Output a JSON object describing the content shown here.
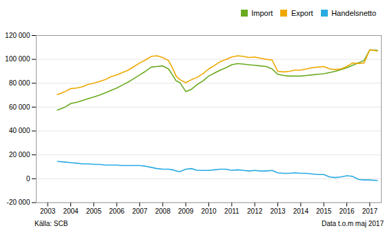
{
  "chart_data": {
    "type": "line",
    "x": [
      2003.42,
      2003.75,
      2004.0,
      2004.25,
      2004.5,
      2004.75,
      2005.0,
      2005.25,
      2005.5,
      2005.75,
      2006.0,
      2006.25,
      2006.5,
      2006.75,
      2007.0,
      2007.25,
      2007.5,
      2007.75,
      2008.0,
      2008.25,
      2008.42,
      2008.58,
      2008.75,
      2009.0,
      2009.25,
      2009.5,
      2009.75,
      2010.0,
      2010.25,
      2010.5,
      2010.75,
      2011.0,
      2011.25,
      2011.5,
      2011.75,
      2012.0,
      2012.25,
      2012.5,
      2012.75,
      2013.0,
      2013.25,
      2013.5,
      2013.75,
      2014.0,
      2014.25,
      2014.5,
      2014.75,
      2015.0,
      2015.25,
      2015.5,
      2015.75,
      2016.0,
      2016.25,
      2016.5,
      2016.75,
      2017.0,
      2017.33
    ],
    "series": [
      {
        "name": "Import",
        "color": "#6aaa1e",
        "values": [
          57500,
          60000,
          63000,
          64000,
          65500,
          67000,
          68500,
          70000,
          72000,
          74000,
          76000,
          78500,
          81000,
          84000,
          87000,
          90000,
          93500,
          94000,
          94500,
          92000,
          87000,
          82000,
          80500,
          73000,
          75000,
          79000,
          82000,
          86000,
          88500,
          91000,
          93000,
          95500,
          96500,
          96000,
          95500,
          95000,
          94500,
          94000,
          92000,
          87500,
          86500,
          86000,
          86000,
          86000,
          86500,
          87000,
          87500,
          88000,
          89000,
          90000,
          91500,
          93000,
          95000,
          97000,
          99000,
          108000,
          107500
        ]
      },
      {
        "name": "Export",
        "color": "#f0a800",
        "values": [
          70500,
          73000,
          75500,
          76000,
          77000,
          79000,
          80000,
          81500,
          83000,
          85500,
          87000,
          89000,
          91000,
          94000,
          97000,
          99500,
          102500,
          103000,
          101500,
          99000,
          93000,
          86000,
          83000,
          80500,
          83000,
          85000,
          88000,
          92000,
          95000,
          98000,
          100000,
          102000,
          103000,
          102500,
          101500,
          102000,
          101000,
          100000,
          99500,
          90000,
          89500,
          90000,
          91000,
          91000,
          92000,
          93000,
          93500,
          94000,
          92000,
          91500,
          92000,
          94000,
          97000,
          96500,
          97000,
          108000,
          107000
        ]
      },
      {
        "name": "Handelsnetto",
        "color": "#29abe2",
        "values": [
          14500,
          14000,
          13500,
          13000,
          12500,
          12500,
          12000,
          12000,
          11500,
          11500,
          11500,
          11000,
          11000,
          11000,
          11000,
          10500,
          9500,
          8500,
          8000,
          8000,
          7500,
          6500,
          6000,
          8000,
          8500,
          7000,
          7000,
          7000,
          7500,
          8000,
          8000,
          7000,
          7500,
          7000,
          6500,
          7000,
          6500,
          6500,
          7000,
          5000,
          4500,
          4500,
          5000,
          4500,
          4500,
          4000,
          3500,
          3500,
          1500,
          1000,
          1500,
          2500,
          2000,
          -500,
          -1000,
          -1000,
          -1500
        ]
      }
    ],
    "xlim": [
      2002.5,
      2017.5
    ],
    "xticks": [
      2003,
      2004,
      2005,
      2006,
      2007,
      2008,
      2009,
      2010,
      2011,
      2012,
      2013,
      2014,
      2015,
      2016,
      2017
    ],
    "ylim": [
      -20000,
      120000
    ],
    "yticks": [
      {
        "value": -20000,
        "label": "-20 000"
      },
      0,
      {
        "value": 20000,
        "label": "20 000"
      },
      {
        "value": 40000,
        "label": "40 000"
      },
      {
        "value": 60000,
        "label": "60 000"
      },
      {
        "value": 80000,
        "label": "80 000"
      },
      {
        "value": 100000,
        "label": "100 000"
      },
      {
        "value": 120000,
        "label": "120 000"
      }
    ],
    "grid": true,
    "legend": "upper right",
    "annotations": [
      "Källa: SCB",
      "Data t.o.m maj 2017"
    ]
  }
}
